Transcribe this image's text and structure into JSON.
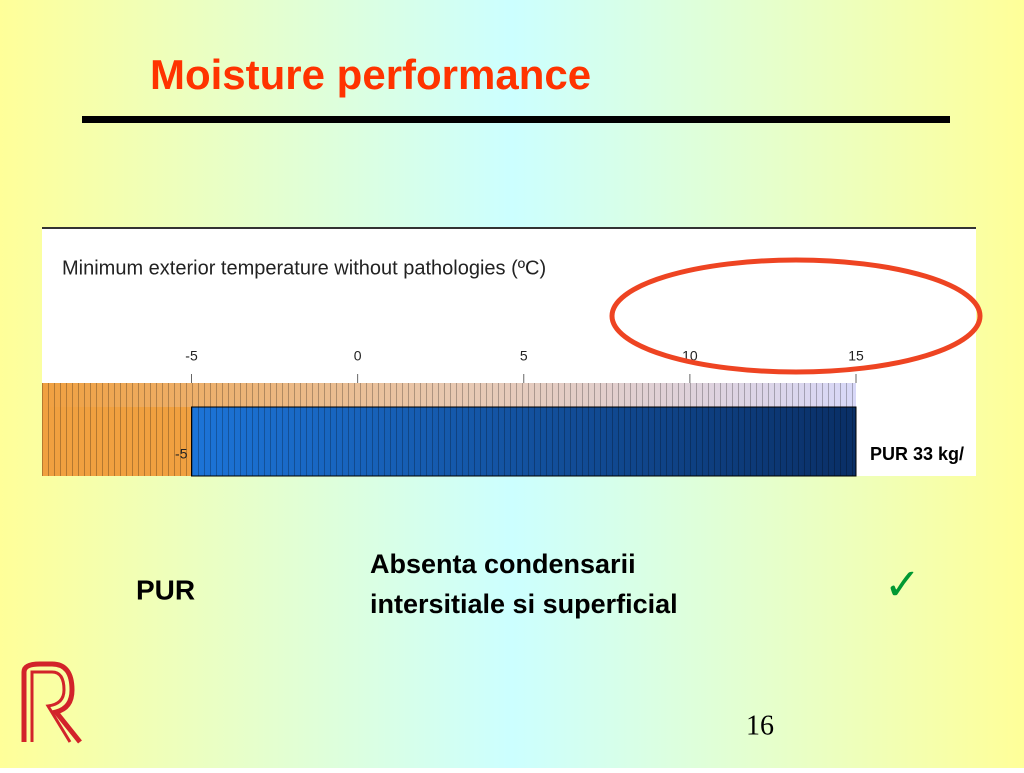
{
  "title": "Moisture performance",
  "chart_data": {
    "type": "bar",
    "orientation": "horizontal",
    "title": "Minimum exterior temperature without pathologies (ºC)",
    "categories": [
      "PUR 33 kg/"
    ],
    "values": [
      -5
    ],
    "color": "#1a5fb4",
    "xlim": [
      -9.5,
      15
    ],
    "xticks": [
      -5,
      0,
      5,
      10,
      15
    ]
  },
  "row": {
    "material": "PUR",
    "result": [
      "Absenta condensarii",
      "intersitiale si superficial"
    ],
    "mark": "✓"
  },
  "page_number": "16"
}
